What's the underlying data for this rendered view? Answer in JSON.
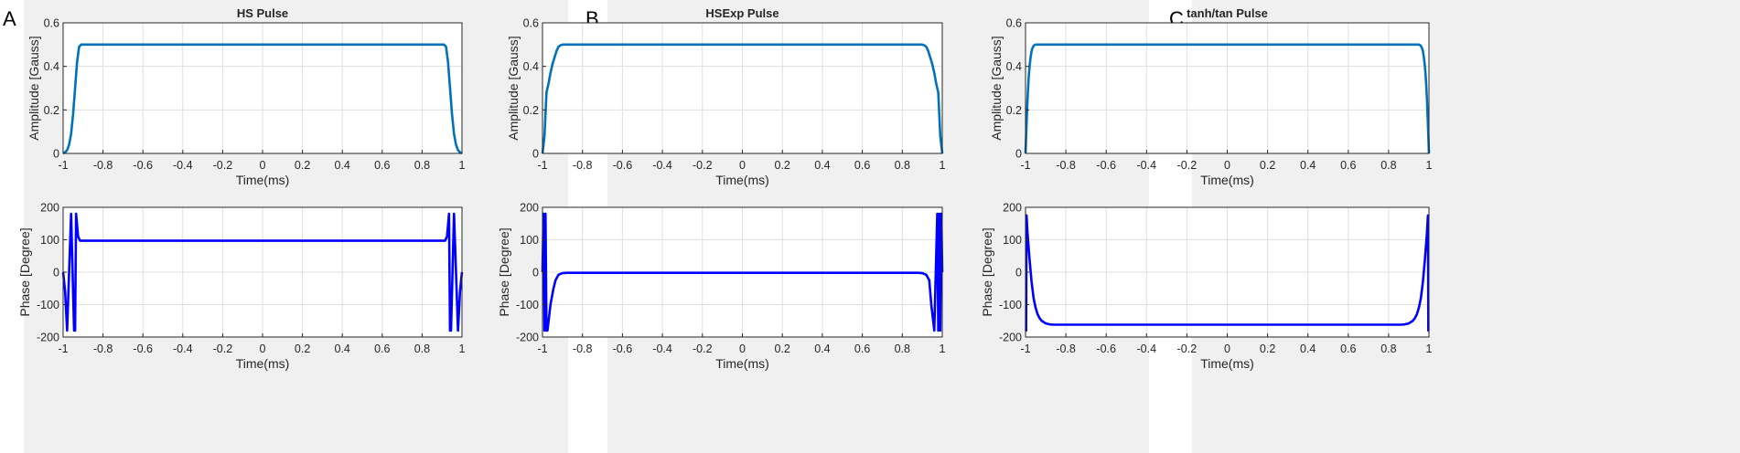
{
  "colors": {
    "panel_bg": "#f0f0f0",
    "plot_bg": "#ffffff",
    "grid": "#dfdfdf",
    "axis": "#262626",
    "amplitude_line": "#0072bd",
    "phase_line": "#0000ff"
  },
  "chart_data": [
    {
      "panel": "A",
      "title": "HS Pulse",
      "type": "line",
      "series_key": "amp_hs",
      "xlabel": "Time(ms)",
      "ylabel": "Amplitude [Gauss]",
      "xlim": [
        -1,
        1
      ],
      "ylim": [
        0,
        0.6
      ],
      "xticks": [
        -1,
        -0.8,
        -0.6,
        -0.4,
        -0.2,
        0,
        0.2,
        0.4,
        0.6,
        0.8,
        1
      ],
      "xtick_labels": [
        "-1",
        "-0.8",
        "-0.6",
        "-0.4",
        "-0.2",
        "0",
        "0.2",
        "0.4",
        "0.6",
        "0.8",
        "1"
      ],
      "yticks": [
        0,
        0.2,
        0.4,
        0.6
      ],
      "ytick_labels": [
        "0",
        "0.2",
        "0.4",
        "0.6"
      ],
      "grid": true,
      "series": [
        {
          "x": [
            -1,
            -0.99,
            -0.98,
            -0.97,
            -0.96,
            -0.95,
            -0.94,
            -0.93,
            -0.92,
            -0.91,
            0,
            0.91,
            0.92,
            0.93,
            0.94,
            0.95,
            0.96,
            0.97,
            0.98,
            0.99,
            1
          ],
          "y": [
            0.0,
            0.005,
            0.015,
            0.04,
            0.09,
            0.18,
            0.3,
            0.42,
            0.49,
            0.5,
            0.5,
            0.5,
            0.49,
            0.42,
            0.3,
            0.18,
            0.09,
            0.04,
            0.015,
            0.005,
            0.0
          ]
        }
      ]
    },
    {
      "panel": "A",
      "title": "",
      "type": "line",
      "series_key": "phase_hs",
      "xlabel": "Time(ms)",
      "ylabel": "Phase [Degree]",
      "xlim": [
        -1,
        1
      ],
      "ylim": [
        -200,
        200
      ],
      "xticks": [
        -1,
        -0.8,
        -0.6,
        -0.4,
        -0.2,
        0,
        0.2,
        0.4,
        0.6,
        0.8,
        1
      ],
      "xtick_labels": [
        "-1",
        "-0.8",
        "-0.6",
        "-0.4",
        "-0.2",
        "0",
        "0.2",
        "0.4",
        "0.6",
        "0.8",
        "1"
      ],
      "yticks": [
        -200,
        -100,
        0,
        100,
        200
      ],
      "ytick_labels": [
        "-200",
        "-100",
        "0",
        "100",
        "200"
      ],
      "grid": true,
      "series": [
        {
          "x": [
            -1,
            -0.99,
            -0.98,
            -0.96,
            -0.945,
            -0.94,
            -0.935,
            -0.925,
            -0.915,
            -0.9,
            0.9,
            0.915,
            0.925,
            0.935,
            0.94,
            0.945,
            0.96,
            0.98,
            0.99,
            1
          ],
          "y": [
            0,
            -60,
            -180,
            180,
            -180,
            -180,
            180,
            110,
            97,
            97,
            97,
            97,
            110,
            180,
            -180,
            -180,
            180,
            -180,
            -60,
            0
          ]
        }
      ]
    },
    {
      "panel": "B",
      "title": "HSExp Pulse",
      "type": "line",
      "series_key": "amp_hsexp",
      "xlabel": "Time(ms)",
      "ylabel": "Amplitude [Gauss]",
      "xlim": [
        -1,
        1
      ],
      "ylim": [
        0,
        0.6
      ],
      "xticks": [
        -1,
        -0.8,
        -0.6,
        -0.4,
        -0.2,
        0,
        0.2,
        0.4,
        0.6,
        0.8,
        1
      ],
      "xtick_labels": [
        "-1",
        "-0.8",
        "-0.6",
        "-0.4",
        "-0.2",
        "0",
        "0.2",
        "0.4",
        "0.6",
        "0.8",
        "1"
      ],
      "yticks": [
        0,
        0.2,
        0.4,
        0.6
      ],
      "ytick_labels": [
        "0",
        "0.2",
        "0.4",
        "0.6"
      ],
      "grid": true,
      "series": [
        {
          "x": [
            -1,
            -0.99,
            -0.985,
            -0.98,
            -0.97,
            -0.96,
            -0.95,
            -0.94,
            -0.93,
            -0.92,
            -0.91,
            -0.9,
            0,
            0.9,
            0.91,
            0.92,
            0.93,
            0.94,
            0.95,
            0.96,
            0.97,
            0.98,
            0.985,
            0.99,
            1
          ],
          "y": [
            0.0,
            0.08,
            0.18,
            0.28,
            0.32,
            0.37,
            0.41,
            0.44,
            0.47,
            0.49,
            0.497,
            0.5,
            0.5,
            0.5,
            0.497,
            0.49,
            0.47,
            0.44,
            0.41,
            0.37,
            0.32,
            0.28,
            0.18,
            0.08,
            0.0
          ]
        }
      ]
    },
    {
      "panel": "B",
      "title": "",
      "type": "line",
      "series_key": "phase_hsexp",
      "xlabel": "Time(ms)",
      "ylabel": "Phase [Degree]",
      "xlim": [
        -1,
        1
      ],
      "ylim": [
        -200,
        200
      ],
      "xticks": [
        -1,
        -0.8,
        -0.6,
        -0.4,
        -0.2,
        0,
        0.2,
        0.4,
        0.6,
        0.8,
        1
      ],
      "xtick_labels": [
        "-1",
        "-0.8",
        "-0.6",
        "-0.4",
        "-0.2",
        "0",
        "0.2",
        "0.4",
        "0.6",
        "0.8",
        "1"
      ],
      "yticks": [
        -200,
        -100,
        0,
        100,
        200
      ],
      "ytick_labels": [
        "-200",
        "-100",
        "0",
        "100",
        "200"
      ],
      "grid": true,
      "series": [
        {
          "x": [
            -1,
            -0.995,
            -0.99,
            -0.985,
            -0.98,
            -0.975,
            -0.96,
            -0.945,
            -0.935,
            -0.92,
            -0.9,
            -0.88,
            0.88,
            0.9,
            0.92,
            0.935,
            0.945,
            0.96,
            0.975,
            0.98,
            0.985,
            0.99,
            0.995,
            1
          ],
          "y": [
            0,
            180,
            -180,
            180,
            -180,
            -180,
            -100,
            -50,
            -25,
            -8,
            -3,
            -2,
            -2,
            -3,
            -8,
            -25,
            -100,
            -180,
            180,
            -180,
            180,
            -180,
            180,
            0
          ]
        }
      ]
    },
    {
      "panel": "C",
      "title": "tanh/tan Pulse",
      "type": "line",
      "series_key": "amp_tanh",
      "xlabel": "Time(ms)",
      "ylabel": "Amplitude [Gauss]",
      "xlim": [
        -1,
        1
      ],
      "ylim": [
        0,
        0.6
      ],
      "xticks": [
        -1,
        -0.8,
        -0.6,
        -0.4,
        -0.2,
        0,
        0.2,
        0.4,
        0.6,
        0.8,
        1
      ],
      "xtick_labels": [
        "-1",
        "-0.8",
        "-0.6",
        "-0.4",
        "-0.2",
        "0",
        "0.2",
        "0.4",
        "0.6",
        "0.8",
        "1"
      ],
      "yticks": [
        0,
        0.2,
        0.4,
        0.6
      ],
      "ytick_labels": [
        "0",
        "0.2",
        "0.4",
        "0.6"
      ],
      "grid": true,
      "series": [
        {
          "x": [
            -1,
            -0.995,
            -0.99,
            -0.985,
            -0.98,
            -0.975,
            -0.97,
            -0.965,
            -0.96,
            -0.955,
            -0.95,
            0,
            0.95,
            0.955,
            0.96,
            0.965,
            0.97,
            0.975,
            0.98,
            0.985,
            0.99,
            0.995,
            1
          ],
          "y": [
            0.0,
            0.13,
            0.25,
            0.34,
            0.4,
            0.44,
            0.47,
            0.485,
            0.494,
            0.498,
            0.5,
            0.5,
            0.5,
            0.498,
            0.494,
            0.485,
            0.47,
            0.44,
            0.4,
            0.34,
            0.25,
            0.13,
            0.0
          ]
        }
      ]
    },
    {
      "panel": "C",
      "title": "",
      "type": "line",
      "series_key": "phase_tanh",
      "xlabel": "Time(ms)",
      "ylabel": "Phase [Degree]",
      "xlim": [
        -1,
        1
      ],
      "ylim": [
        -200,
        200
      ],
      "xticks": [
        -1,
        -0.8,
        -0.6,
        -0.4,
        -0.2,
        0,
        0.2,
        0.4,
        0.6,
        0.8,
        1
      ],
      "xtick_labels": [
        "-1",
        "-0.8",
        "-0.6",
        "-0.4",
        "-0.2",
        "0",
        "0.2",
        "0.4",
        "0.6",
        "0.8",
        "1"
      ],
      "yticks": [
        -200,
        -100,
        0,
        100,
        200
      ],
      "ytick_labels": [
        "-200",
        "-100",
        "0",
        "100",
        "200"
      ],
      "grid": true,
      "series": [
        {
          "x": [
            -1,
            -0.997,
            -0.995,
            -0.99,
            -0.98,
            -0.97,
            -0.96,
            -0.95,
            -0.94,
            -0.93,
            -0.92,
            -0.9,
            -0.88,
            -0.86,
            -0.84,
            0.84,
            0.86,
            0.88,
            0.9,
            0.92,
            0.93,
            0.94,
            0.95,
            0.96,
            0.97,
            0.98,
            0.99,
            0.995,
            0.997,
            1
          ],
          "y": [
            -180,
            -180,
            175,
            120,
            40,
            -30,
            -80,
            -110,
            -130,
            -142,
            -150,
            -158,
            -161,
            -162,
            -162,
            -162,
            -162,
            -161,
            -158,
            -150,
            -142,
            -130,
            -110,
            -80,
            -30,
            40,
            120,
            175,
            -180,
            -180
          ]
        }
      ]
    }
  ],
  "panel_letters": [
    "A",
    "B",
    "C"
  ]
}
